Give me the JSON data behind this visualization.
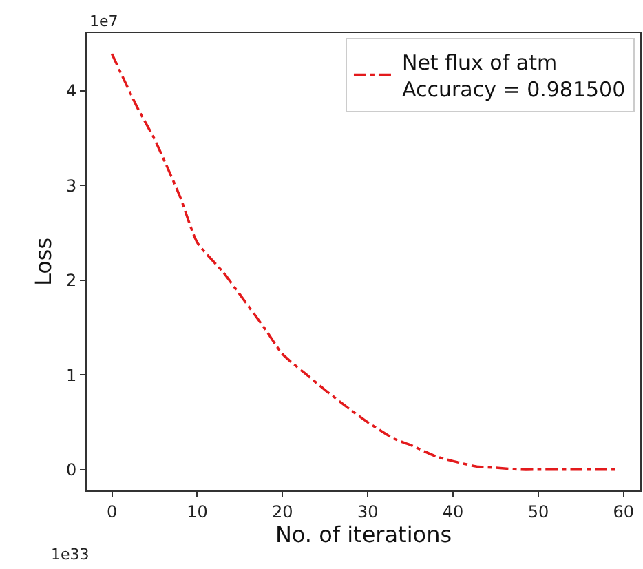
{
  "chart_data": {
    "type": "line",
    "xlabel": "No. of iterations",
    "ylabel": "Loss",
    "x": [
      0,
      3,
      5,
      8,
      10,
      13,
      15,
      18,
      20,
      23,
      25,
      28,
      30,
      33,
      35,
      38,
      40,
      43,
      45,
      48,
      50,
      55,
      59
    ],
    "series": [
      {
        "name": "Net flux of atm\nAccuracy = 0.981500",
        "color": "#e31a1c",
        "values": [
          4.39,
          3.82,
          3.49,
          2.88,
          2.4,
          2.09,
          1.85,
          1.48,
          1.22,
          0.99,
          0.84,
          0.63,
          0.5,
          0.33,
          0.26,
          0.14,
          0.09,
          0.03,
          0.02,
          0.0,
          0.0,
          0.0,
          0.0
        ]
      }
    ],
    "xlim": [
      -2.95,
      61.95
    ],
    "ylim": [
      -0.22,
      4.61
    ],
    "xticks": [
      0,
      10,
      20,
      30,
      40,
      50,
      60
    ],
    "yticks": [
      0,
      1,
      2,
      3,
      4
    ],
    "annotations": [
      "1e7",
      "1e33"
    ],
    "legend": "top right",
    "line_style": "dashdot",
    "marker": "none",
    "grid": false
  }
}
